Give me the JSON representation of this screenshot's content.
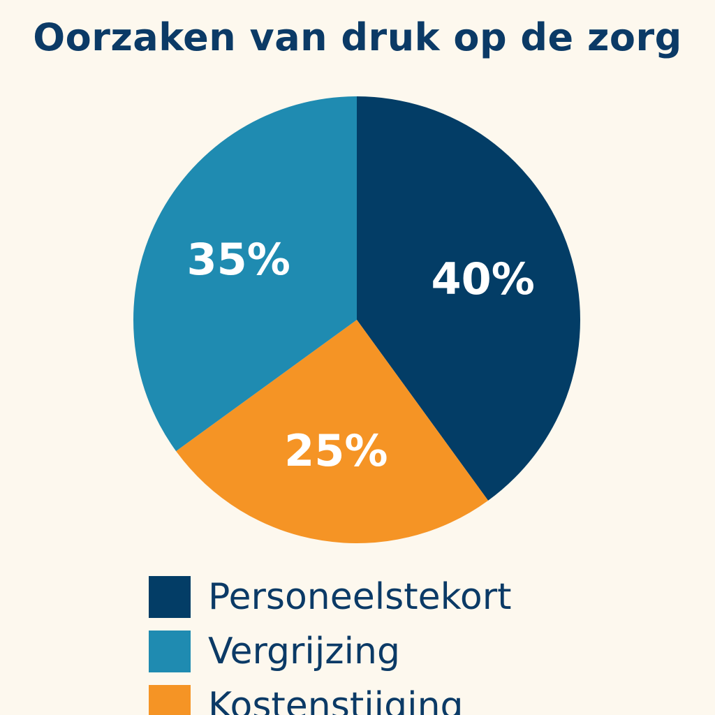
{
  "title": "Oorzaken van druk op de zorg",
  "chart_data": {
    "type": "pie",
    "title": "Oorzaken van druk op de zorg",
    "start_angle_deg": 0,
    "direction": "clockwise",
    "legend_position": "bottom",
    "series": [
      {
        "name": "Personeelstekort",
        "value": 40,
        "label": "40%",
        "color": "#033d66"
      },
      {
        "name": "Kostenstijging",
        "value": 25,
        "label": "25%",
        "color": "#f59425"
      },
      {
        "name": "Vergrijzing",
        "value": 35,
        "label": "35%",
        "color": "#1f8bb1"
      }
    ]
  },
  "legend": {
    "items": [
      {
        "label": "Personeelstekort",
        "color": "#033d66"
      },
      {
        "label": "Vergrijzing",
        "color": "#1f8bb1"
      },
      {
        "label": "Kostenstijging",
        "color": "#f59425"
      }
    ]
  }
}
